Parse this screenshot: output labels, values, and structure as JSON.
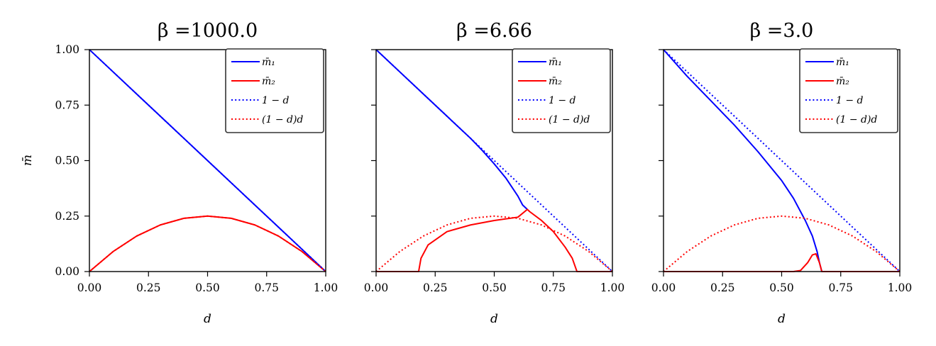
{
  "figure": {
    "ylabel": "m̄",
    "xlabel": "d",
    "legend_labels": [
      "m̄₁",
      "m̄₂",
      "1 − d",
      "(1 − d)d"
    ],
    "colors": {
      "m1": "#0000ff",
      "m2": "#ff0000",
      "axes": "#000000",
      "legend_border": "#333333"
    }
  },
  "chart_data": [
    {
      "type": "line",
      "title": "β =1000.0",
      "xlabel": "d",
      "ylabel": "m̄",
      "xlim": [
        0,
        1
      ],
      "ylim": [
        0,
        1
      ],
      "xticks": [
        "0.00",
        "0.25",
        "0.50",
        "0.75",
        "1.00"
      ],
      "yticks": [
        "0.00",
        "0.25",
        "0.50",
        "0.75",
        "1.00"
      ],
      "grid": false,
      "legend_position": "top-right",
      "series": [
        {
          "name": "m̄₁",
          "style": "solid",
          "color": "#0000ff",
          "x": [
            0,
            0.1,
            0.2,
            0.3,
            0.4,
            0.5,
            0.6,
            0.7,
            0.8,
            0.9,
            1.0
          ],
          "y": [
            1.0,
            0.9,
            0.8,
            0.7,
            0.6,
            0.5,
            0.4,
            0.3,
            0.2,
            0.1,
            0.0
          ]
        },
        {
          "name": "m̄₂",
          "style": "solid",
          "color": "#ff0000",
          "x": [
            0,
            0.1,
            0.2,
            0.3,
            0.4,
            0.5,
            0.6,
            0.7,
            0.8,
            0.9,
            1.0
          ],
          "y": [
            0.0,
            0.09,
            0.16,
            0.21,
            0.24,
            0.25,
            0.24,
            0.21,
            0.16,
            0.09,
            0.0
          ]
        },
        {
          "name": "1 − d",
          "style": "dotted",
          "color": "#0000ff",
          "x": [
            0,
            1
          ],
          "y": [
            1,
            0
          ]
        },
        {
          "name": "(1 − d)d",
          "style": "dotted",
          "color": "#ff0000",
          "x": [
            0,
            0.1,
            0.2,
            0.3,
            0.4,
            0.5,
            0.6,
            0.7,
            0.8,
            0.9,
            1.0
          ],
          "y": [
            0.0,
            0.09,
            0.16,
            0.21,
            0.24,
            0.25,
            0.24,
            0.21,
            0.16,
            0.09,
            0.0
          ]
        }
      ]
    },
    {
      "type": "line",
      "title": "β =6.66",
      "xlabel": "d",
      "xlim": [
        0,
        1
      ],
      "ylim": [
        0,
        1
      ],
      "xticks": [
        "0.00",
        "0.25",
        "0.50",
        "0.75",
        "1.00"
      ],
      "grid": false,
      "legend_position": "top-right",
      "series": [
        {
          "name": "m̄₁",
          "style": "solid",
          "color": "#0000ff",
          "x": [
            0,
            0.1,
            0.2,
            0.3,
            0.4,
            0.45,
            0.5,
            0.55,
            0.6,
            0.62,
            0.64
          ],
          "y": [
            1.0,
            0.9,
            0.8,
            0.7,
            0.6,
            0.545,
            0.485,
            0.42,
            0.34,
            0.3,
            0.28
          ]
        },
        {
          "name": "m̄₂",
          "style": "solid",
          "color": "#ff0000",
          "x": [
            0,
            0.18,
            0.19,
            0.22,
            0.3,
            0.4,
            0.5,
            0.6,
            0.64,
            0.65,
            0.7,
            0.75,
            0.8,
            0.83,
            0.85,
            1.0
          ],
          "y": [
            0.0,
            0.0,
            0.06,
            0.12,
            0.18,
            0.21,
            0.23,
            0.245,
            0.28,
            0.27,
            0.23,
            0.18,
            0.11,
            0.06,
            0.0,
            0.0
          ]
        },
        {
          "name": "1 − d",
          "style": "dotted",
          "color": "#0000ff",
          "x": [
            0,
            1
          ],
          "y": [
            1,
            0
          ]
        },
        {
          "name": "(1 − d)d",
          "style": "dotted",
          "color": "#ff0000",
          "x": [
            0,
            0.1,
            0.2,
            0.3,
            0.4,
            0.5,
            0.6,
            0.7,
            0.8,
            0.9,
            1.0
          ],
          "y": [
            0.0,
            0.09,
            0.16,
            0.21,
            0.24,
            0.25,
            0.24,
            0.21,
            0.16,
            0.09,
            0.0
          ]
        }
      ]
    },
    {
      "type": "line",
      "title": "β =3.0",
      "xlabel": "d",
      "xlim": [
        0,
        1
      ],
      "ylim": [
        0,
        1
      ],
      "xticks": [
        "0.00",
        "0.25",
        "0.50",
        "0.75",
        "1.00"
      ],
      "grid": false,
      "legend_position": "top-right",
      "series": [
        {
          "name": "m̄₁",
          "style": "solid",
          "color": "#0000ff",
          "x": [
            0,
            0.1,
            0.2,
            0.3,
            0.4,
            0.5,
            0.55,
            0.6,
            0.63,
            0.65,
            0.66,
            0.67,
            1.0
          ],
          "y": [
            1.0,
            0.88,
            0.77,
            0.66,
            0.54,
            0.41,
            0.33,
            0.23,
            0.16,
            0.09,
            0.04,
            0.0,
            0.0
          ]
        },
        {
          "name": "m̄₂",
          "style": "solid",
          "color": "#ff0000",
          "x": [
            0,
            0.55,
            0.58,
            0.61,
            0.63,
            0.645,
            0.66,
            0.67,
            1.0
          ],
          "y": [
            0.0,
            0.0,
            0.005,
            0.04,
            0.075,
            0.08,
            0.04,
            0.0,
            0.0
          ]
        },
        {
          "name": "1 − d",
          "style": "dotted",
          "color": "#0000ff",
          "x": [
            0,
            1
          ],
          "y": [
            1,
            0
          ]
        },
        {
          "name": "(1 − d)d",
          "style": "dotted",
          "color": "#ff0000",
          "x": [
            0,
            0.1,
            0.2,
            0.3,
            0.4,
            0.5,
            0.6,
            0.7,
            0.8,
            0.9,
            1.0
          ],
          "y": [
            0.0,
            0.09,
            0.16,
            0.21,
            0.24,
            0.25,
            0.24,
            0.21,
            0.16,
            0.09,
            0.0
          ]
        }
      ]
    }
  ]
}
